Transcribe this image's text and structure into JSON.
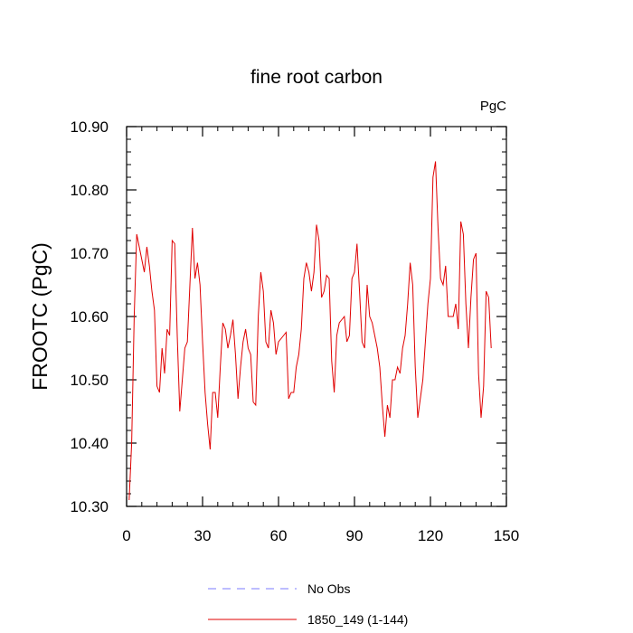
{
  "chart_data": {
    "type": "line",
    "title": "fine root carbon",
    "units_label": "PgC",
    "ylabel": "FROOTC  (PgC)",
    "xlabel": "",
    "xlim": [
      0,
      150
    ],
    "ylim": [
      10.3,
      10.9
    ],
    "x_ticks": [
      0,
      30,
      60,
      90,
      120,
      150
    ],
    "y_ticks": [
      10.3,
      10.4,
      10.5,
      10.6,
      10.7,
      10.8,
      10.9
    ],
    "x_tick_labels": [
      "0",
      "30",
      "60",
      "90",
      "120",
      "150"
    ],
    "y_tick_labels": [
      "10.30",
      "10.40",
      "10.50",
      "10.60",
      "10.70",
      "10.80",
      "10.90"
    ],
    "grid": false,
    "legend_position": "bottom",
    "series": [
      {
        "name": "No Obs",
        "color": "#7b7bff",
        "dash": "dashed",
        "x": [],
        "values": []
      },
      {
        "name": "1850_149 (1-144)",
        "color": "#e00000",
        "dash": "solid",
        "x": [
          1,
          2,
          3,
          4,
          5,
          6,
          7,
          8,
          9,
          10,
          11,
          12,
          13,
          14,
          15,
          16,
          17,
          18,
          19,
          20,
          21,
          22,
          23,
          24,
          25,
          26,
          27,
          28,
          29,
          30,
          31,
          32,
          33,
          34,
          35,
          36,
          37,
          38,
          39,
          40,
          41,
          42,
          43,
          44,
          45,
          46,
          47,
          48,
          49,
          50,
          51,
          52,
          53,
          54,
          55,
          56,
          57,
          58,
          59,
          60,
          61,
          62,
          63,
          64,
          65,
          66,
          67,
          68,
          69,
          70,
          71,
          72,
          73,
          74,
          75,
          76,
          77,
          78,
          79,
          80,
          81,
          82,
          83,
          84,
          85,
          86,
          87,
          88,
          89,
          90,
          91,
          92,
          93,
          94,
          95,
          96,
          97,
          98,
          99,
          100,
          101,
          102,
          103,
          104,
          105,
          106,
          107,
          108,
          109,
          110,
          111,
          112,
          113,
          114,
          115,
          116,
          117,
          118,
          119,
          120,
          121,
          122,
          123,
          124,
          125,
          126,
          127,
          128,
          129,
          130,
          131,
          132,
          133,
          134,
          135,
          136,
          137,
          138,
          139,
          140,
          141,
          142,
          143,
          144
        ],
        "values": [
          10.31,
          10.4,
          10.6,
          10.73,
          10.71,
          10.69,
          10.67,
          10.71,
          10.68,
          10.64,
          10.61,
          10.49,
          10.48,
          10.55,
          10.51,
          10.58,
          10.57,
          10.72,
          10.715,
          10.57,
          10.45,
          10.5,
          10.55,
          10.56,
          10.65,
          10.74,
          10.66,
          10.685,
          10.65,
          10.56,
          10.48,
          10.43,
          10.39,
          10.48,
          10.48,
          10.44,
          10.52,
          10.59,
          10.58,
          10.55,
          10.57,
          10.595,
          10.54,
          10.47,
          10.52,
          10.56,
          10.58,
          10.55,
          10.54,
          10.465,
          10.46,
          10.6,
          10.67,
          10.64,
          10.56,
          10.55,
          10.61,
          10.59,
          10.54,
          10.56,
          10.565,
          10.57,
          10.575,
          10.47,
          10.48,
          10.48,
          10.52,
          10.54,
          10.58,
          10.66,
          10.685,
          10.67,
          10.64,
          10.67,
          10.745,
          10.72,
          10.63,
          10.64,
          10.665,
          10.66,
          10.53,
          10.48,
          10.57,
          10.59,
          10.595,
          10.6,
          10.56,
          10.57,
          10.66,
          10.67,
          10.715,
          10.64,
          10.56,
          10.55,
          10.65,
          10.6,
          10.59,
          10.57,
          10.55,
          10.52,
          10.46,
          10.41,
          10.46,
          10.44,
          10.5,
          10.5,
          10.52,
          10.51,
          10.55,
          10.57,
          10.62,
          10.685,
          10.65,
          10.52,
          10.44,
          10.47,
          10.5,
          10.56,
          10.62,
          10.66,
          10.82,
          10.845,
          10.74,
          10.66,
          10.65,
          10.68,
          10.6,
          10.6,
          10.6,
          10.62,
          10.58,
          10.75,
          10.73,
          10.62,
          10.55,
          10.63,
          10.69,
          10.7,
          10.51,
          10.44,
          10.49,
          10.64,
          10.63,
          10.55
        ]
      }
    ]
  }
}
